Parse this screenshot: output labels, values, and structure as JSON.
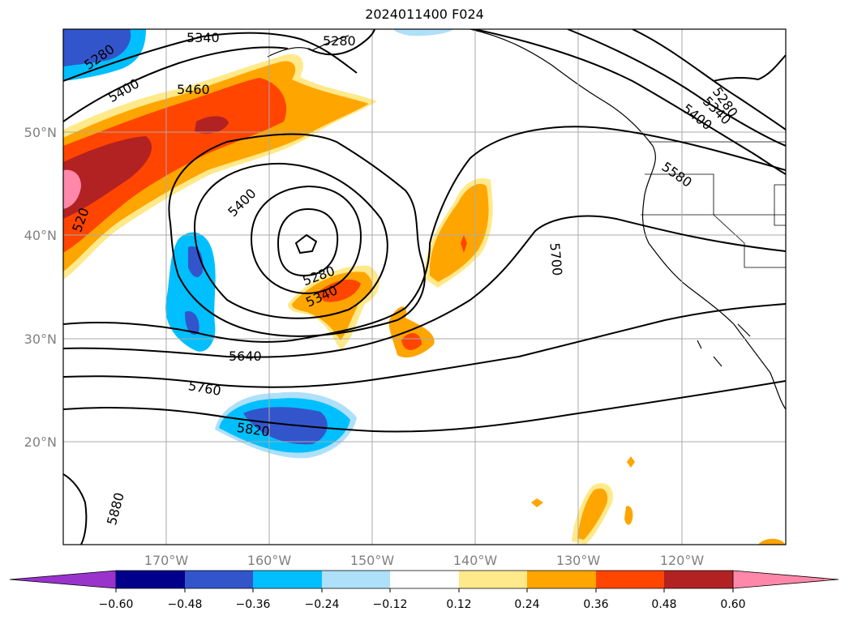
{
  "title": "2024011400 F024",
  "map": {
    "lat_labels": [
      "50°N",
      "40°N",
      "30°N",
      "20°N"
    ],
    "lon_labels": [
      "170°W",
      "160°W",
      "150°W",
      "140°W",
      "130°W",
      "120°W"
    ],
    "contour_labels": [
      "5280",
      "5340",
      "5280",
      "5400",
      "5460",
      "5400",
      "5280",
      "5340",
      "5640",
      "5760",
      "5820",
      "5880",
      "5700",
      "5580",
      "5400",
      "5340",
      "5280",
      "520"
    ]
  },
  "colorbar": {
    "ticks": [
      "−0.60",
      "−0.48",
      "−0.36",
      "−0.24",
      "−0.12",
      "0.12",
      "0.24",
      "0.36",
      "0.48",
      "0.60"
    ],
    "colors": [
      "#9933cc",
      "#00008b",
      "#3355cc",
      "#00bfff",
      "#aee0fa",
      "#ffffff",
      "#ffe98a",
      "#ffa500",
      "#ff4500",
      "#b22222",
      "#ff88aa"
    ]
  }
}
